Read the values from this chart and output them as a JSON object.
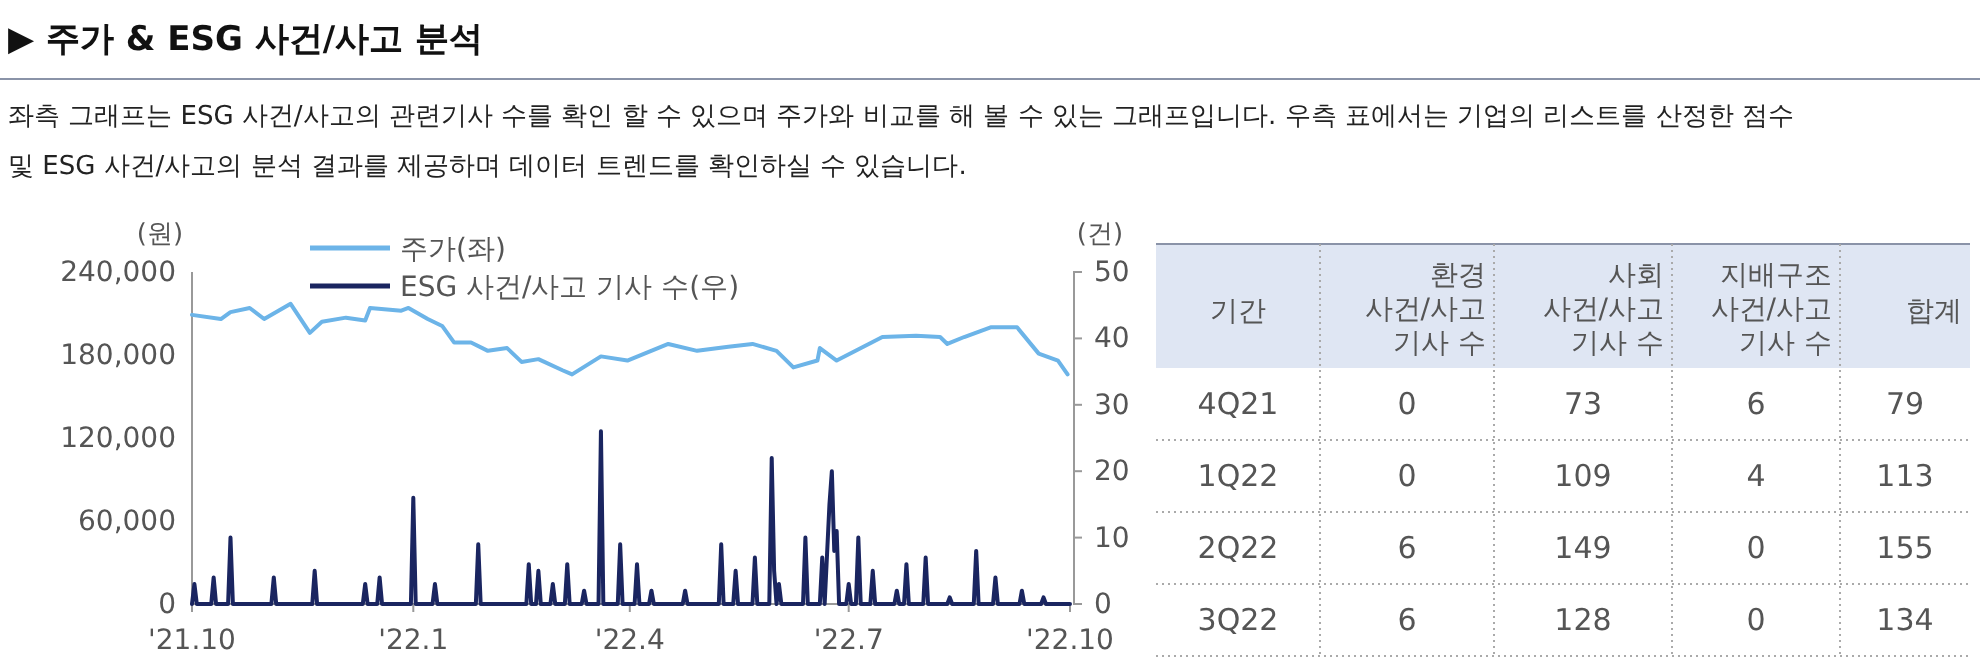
{
  "chart_data": [
    {
      "type": "line",
      "title": "▶ 주가 & ESG 사건/사고 분석",
      "subtitle": "좌측 그래프는 ESG 사건/사고의 관련기사 수를 확인 할 수 있으며 주가와 비교를 해 볼 수 있는 그래프입니다. 우측 표에서는 기업의 리스트를 산정한 점수 및 ESG 사건/사고의 분석 결과를 제공하며 데이터 트렌드를 확인하실 수 있습니다.",
      "ylabel": "(원)",
      "y2label": "(건)",
      "legend": "top",
      "xlim": [
        "2021-10-01",
        "2022-10-01"
      ],
      "xticks": [
        {
          "value": "2021-10-01",
          "label": "'21.10"
        },
        {
          "value": "2022-01-01",
          "label": "'22.1"
        },
        {
          "value": "2022-04-01",
          "label": "'22.4"
        },
        {
          "value": "2022-07-01",
          "label": "'22.7"
        },
        {
          "value": "2022-10-01",
          "label": "'22.10"
        }
      ],
      "ylim": [
        0,
        240000
      ],
      "yticks": [
        0,
        {
          "value": 60000,
          "label": "60,000"
        },
        {
          "value": 120000,
          "label": "120,000"
        },
        {
          "value": 180000,
          "label": "180,000"
        },
        {
          "value": 240000,
          "label": "240,000"
        }
      ],
      "y2lim": [
        0,
        50
      ],
      "y2ticks": [
        0,
        10,
        20,
        30,
        40,
        50
      ],
      "series": [
        {
          "name": "주가(좌)",
          "color": "#6cb4e8",
          "x": [
            "2021-10-01",
            "2021-10-13",
            "2021-10-17",
            "2021-10-25",
            "2021-10-31",
            "2021-11-11",
            "2021-11-19",
            "2021-11-24",
            "2021-12-04",
            "2021-12-12",
            "2021-12-14",
            "2021-12-27",
            "2021-12-30",
            "2022-01-07",
            "2022-01-13",
            "2022-01-18",
            "2022-01-25",
            "2022-02-01",
            "2022-02-09",
            "2022-02-15",
            "2022-02-22",
            "2022-03-04",
            "2022-03-08",
            "2022-03-20",
            "2022-03-31",
            "2022-04-17",
            "2022-04-29",
            "2022-05-12",
            "2022-05-22",
            "2022-06-01",
            "2022-06-08",
            "2022-06-18",
            "2022-06-19",
            "2022-06-26",
            "2022-07-15",
            "2022-07-29",
            "2022-08-08",
            "2022-08-11",
            "2022-08-18",
            "2022-08-29",
            "2022-09-09",
            "2022-09-18",
            "2022-09-26",
            "2022-09-30"
          ],
          "values": [
            209000,
            206000,
            211000,
            214000,
            206000,
            217000,
            196000,
            204000,
            207000,
            205000,
            214000,
            212000,
            214000,
            206000,
            201000,
            189000,
            189000,
            183000,
            185000,
            175000,
            177000,
            169000,
            166000,
            179000,
            176000,
            188000,
            183000,
            186000,
            188000,
            183000,
            171000,
            176000,
            185000,
            176000,
            193000,
            194000,
            193000,
            188000,
            193000,
            200000,
            200000,
            181000,
            176000,
            166000
          ]
        },
        {
          "name": "ESG 사건/사고 기사 수(우)",
          "color": "#1a2560",
          "axis": "y2",
          "x": [
            "2021-10-01",
            "2021-10-02",
            "2021-10-03",
            "2021-10-09",
            "2021-10-10",
            "2021-10-11",
            "2021-10-16",
            "2021-10-17",
            "2021-10-18",
            "2021-11-03",
            "2021-11-04",
            "2021-11-05",
            "2021-11-20",
            "2021-11-21",
            "2021-11-22",
            "2021-12-11",
            "2021-12-12",
            "2021-12-13",
            "2021-12-17",
            "2021-12-18",
            "2021-12-19",
            "2021-12-31",
            "2022-01-01",
            "2022-01-02",
            "2022-01-09",
            "2022-01-10",
            "2022-01-11",
            "2022-01-27",
            "2022-01-28",
            "2022-01-29",
            "2022-02-17",
            "2022-02-18",
            "2022-02-19",
            "2022-02-21",
            "2022-02-22",
            "2022-02-23",
            "2022-02-27",
            "2022-02-28",
            "2022-03-01",
            "2022-03-05",
            "2022-03-06",
            "2022-03-07",
            "2022-03-12",
            "2022-03-13",
            "2022-03-14",
            "2022-03-19",
            "2022-03-20",
            "2022-03-21",
            "2022-03-27",
            "2022-03-28",
            "2022-03-29",
            "2022-04-03",
            "2022-04-04",
            "2022-04-05",
            "2022-04-09",
            "2022-04-10",
            "2022-04-11",
            "2022-04-23",
            "2022-04-24",
            "2022-04-25",
            "2022-05-08",
            "2022-05-09",
            "2022-05-10",
            "2022-05-14",
            "2022-05-15",
            "2022-05-16",
            "2022-05-22",
            "2022-05-23",
            "2022-05-24",
            "2022-05-29",
            "2022-05-30",
            "2022-05-31",
            "2022-06-01",
            "2022-06-02",
            "2022-06-03",
            "2022-06-12",
            "2022-06-13",
            "2022-06-14",
            "2022-06-19",
            "2022-06-20",
            "2022-06-21",
            "2022-06-23",
            "2022-06-24",
            "2022-06-25",
            "2022-06-26",
            "2022-06-27",
            "2022-06-30",
            "2022-07-01",
            "2022-07-02",
            "2022-07-04",
            "2022-07-05",
            "2022-07-06",
            "2022-07-10",
            "2022-07-11",
            "2022-07-12",
            "2022-07-20",
            "2022-07-21",
            "2022-07-22",
            "2022-07-24",
            "2022-07-25",
            "2022-07-26",
            "2022-08-01",
            "2022-08-02",
            "2022-08-03",
            "2022-08-11",
            "2022-08-12",
            "2022-08-13",
            "2022-08-22",
            "2022-08-23",
            "2022-08-24",
            "2022-08-30",
            "2022-08-31",
            "2022-09-01",
            "2022-09-10",
            "2022-09-11",
            "2022-09-12",
            "2022-09-19",
            "2022-09-20",
            "2022-09-21",
            "2022-10-01"
          ],
          "values": [
            0,
            3,
            0,
            0,
            4,
            0,
            0,
            10,
            0,
            0,
            4,
            0,
            0,
            5,
            0,
            0,
            3,
            0,
            0,
            4,
            0,
            0,
            16,
            0,
            0,
            3,
            0,
            0,
            9,
            0,
            0,
            6,
            0,
            0,
            5,
            0,
            0,
            3,
            0,
            0,
            6,
            0,
            0,
            2,
            0,
            0,
            26,
            0,
            0,
            9,
            0,
            0,
            6,
            0,
            0,
            2,
            0,
            0,
            2,
            0,
            0,
            9,
            0,
            0,
            5,
            0,
            0,
            7,
            0,
            0,
            22,
            5,
            0,
            3,
            0,
            0,
            10,
            0,
            0,
            7,
            0,
            15,
            20,
            8,
            11,
            0,
            0,
            3,
            0,
            0,
            10,
            0,
            0,
            5,
            0,
            0,
            2,
            0,
            0,
            6,
            0,
            0,
            7,
            0,
            0,
            1,
            0,
            0,
            8,
            0,
            0,
            4,
            0,
            0,
            2,
            0,
            0,
            1,
            0,
            0
          ]
        }
      ]
    },
    {
      "type": "other",
      "xlabel": "기간",
      "categories": [
        "4Q21",
        "1Q22",
        "2Q22",
        "3Q22"
      ],
      "data_labels": true,
      "series": [
        {
          "name": "환경\n사건/사고\n기사 수",
          "values": [
            0,
            0,
            6,
            6
          ]
        },
        {
          "name": "사회\n사건/사고\n기사 수",
          "values": [
            73,
            109,
            149,
            128
          ]
        },
        {
          "name": "지배구조\n사건/사고\n기사 수",
          "values": [
            6,
            4,
            0,
            0
          ]
        },
        {
          "name": "합계",
          "values": [
            79,
            113,
            155,
            134
          ]
        }
      ]
    }
  ]
}
